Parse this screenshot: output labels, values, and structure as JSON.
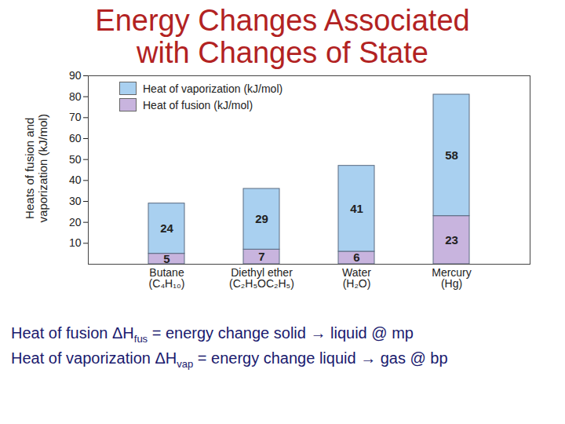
{
  "chart_data": {
    "type": "bar",
    "title": "Energy Changes Associated\nwith Changes of State",
    "y_label": "Heats of fusion and\nvaporization (kJ/mol)",
    "categories": [
      "Butane\n(C₄H₁₀)",
      "Diethyl ether\n(C₂H₅OC₂H₅)",
      "Water\n(H₂O)",
      "Mercury\n(Hg)"
    ],
    "series": [
      {
        "name": "Heat of vaporization (kJ/mol)",
        "color": "#a9d0f0",
        "values": [
          24,
          29,
          41,
          58
        ]
      },
      {
        "name": "Heat of fusion (kJ/mol)",
        "color": "#c8b4de",
        "values": [
          5,
          7,
          6,
          23
        ]
      }
    ],
    "stacked": true,
    "data_labels": true,
    "legend": "top-left",
    "grid": false,
    "ylim": [
      0,
      90
    ],
    "yticks": [
      10,
      20,
      30,
      40,
      50,
      60,
      70,
      80,
      90
    ],
    "annotations": [
      [
        "Heat of fusion ΔH",
        "fus",
        "  =  energy change solid → liquid @ mp"
      ],
      [
        "Heat of vaporization ΔH",
        "vap",
        " = energy change liquid → gas @ bp"
      ]
    ]
  }
}
